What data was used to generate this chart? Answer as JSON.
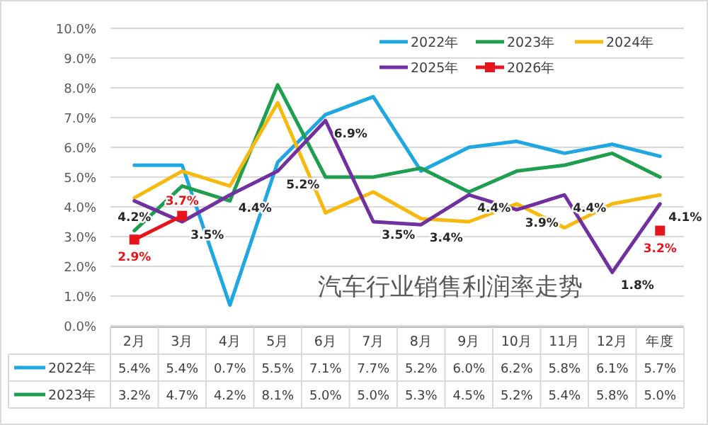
{
  "chart_data": {
    "type": "line",
    "title": "汽车行业销售利润率走势",
    "categories": [
      "2月",
      "3月",
      "4月",
      "5月",
      "6月",
      "7月",
      "8月",
      "9月",
      "10月",
      "11月",
      "12月",
      "年度"
    ],
    "ylim": [
      0,
      10
    ],
    "yticks": [
      {
        "value": 0,
        "label": "0.0%"
      },
      {
        "value": 1,
        "label": "1.0%"
      },
      {
        "value": 2,
        "label": "2.0%"
      },
      {
        "value": 3,
        "label": "3.0%"
      },
      {
        "value": 4,
        "label": "4.0%"
      },
      {
        "value": 5,
        "label": "5.0%"
      },
      {
        "value": 6,
        "label": "6.0%"
      },
      {
        "value": 7,
        "label": "7.0%"
      },
      {
        "value": 8,
        "label": "8.0%"
      },
      {
        "value": 9,
        "label": "9.0%"
      },
      {
        "value": 10,
        "label": "10.0%"
      }
    ],
    "grid": "y",
    "legend": "top right",
    "series": [
      {
        "name": "2022年",
        "color": "#1ea7e1",
        "values": [
          5.4,
          5.4,
          0.7,
          5.5,
          7.1,
          7.7,
          5.2,
          6.0,
          6.2,
          5.8,
          6.1,
          5.7
        ],
        "value_labels": [
          "5.4%",
          "5.4%",
          "0.7%",
          "5.5%",
          "7.1%",
          "7.7%",
          "5.2%",
          "6.0%",
          "6.2%",
          "5.8%",
          "6.1%",
          "5.7%"
        ]
      },
      {
        "name": "2023年",
        "color": "#1f9e4f",
        "values": [
          3.2,
          4.7,
          4.2,
          8.1,
          5.0,
          5.0,
          5.3,
          4.5,
          5.2,
          5.4,
          5.8,
          5.0
        ],
        "value_labels": [
          "3.2%",
          "4.7%",
          "4.2%",
          "8.1%",
          "5.0%",
          "5.0%",
          "5.3%",
          "4.5%",
          "5.2%",
          "5.4%",
          "5.8%",
          "5.0%"
        ]
      },
      {
        "name": "2024年",
        "color": "#f6b90e",
        "values": [
          4.3,
          5.2,
          4.7,
          7.5,
          3.8,
          4.5,
          3.6,
          3.5,
          4.1,
          3.3,
          4.1,
          4.4
        ]
      },
      {
        "name": "2025年",
        "color": "#7030a0",
        "values": [
          4.2,
          3.5,
          4.4,
          5.2,
          6.9,
          3.5,
          3.4,
          4.4,
          3.9,
          4.4,
          1.8,
          4.1
        ],
        "value_labels": [
          "4.2%",
          "3.5%",
          "4.4%",
          "5.2%",
          "6.9%",
          "3.5%",
          "3.4%",
          "4.4%",
          "3.9%",
          "4.4%",
          "1.8%",
          "4.1%"
        ]
      },
      {
        "name": "2026年",
        "color": "#e8141b",
        "marker": "square",
        "values": [
          2.9,
          3.7,
          null,
          null,
          null,
          null,
          null,
          null,
          null,
          null,
          null,
          3.2
        ],
        "value_labels": [
          "2.9%",
          "3.7%",
          null,
          null,
          null,
          null,
          null,
          null,
          null,
          null,
          null,
          "3.2%"
        ]
      }
    ]
  }
}
